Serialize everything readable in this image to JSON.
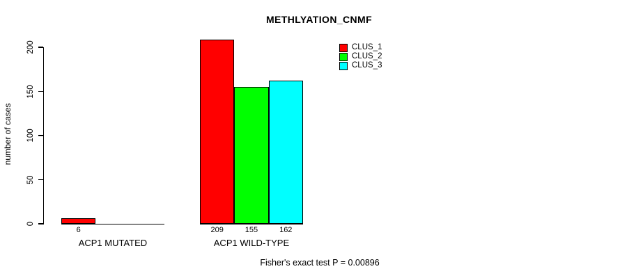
{
  "chart_data": {
    "type": "bar",
    "title": "METHLYATION_CNMF",
    "ylabel": "number of cases",
    "xlabel": "",
    "ylim": [
      0,
      200
    ],
    "yticks": [
      0,
      50,
      100,
      150,
      200
    ],
    "grid": false,
    "legend_position": "top-right",
    "colors": {
      "clus_1": "#ff0000",
      "clus_2": "#00ff00",
      "clus_3": "#00ffff"
    },
    "legend": [
      {
        "name": "CLUS_1",
        "color": "#ff0000"
      },
      {
        "name": "CLUS_2",
        "color": "#00ff00"
      },
      {
        "name": "CLUS_3",
        "color": "#00ffff"
      }
    ],
    "categories": [
      "ACP1 MUTATED",
      "ACP1 WILD-TYPE"
    ],
    "series": [
      {
        "name": "CLUS_1",
        "color": "#ff0000",
        "values": [
          6,
          209
        ]
      },
      {
        "name": "CLUS_2",
        "color": "#00ff00",
        "values": [
          null,
          155
        ]
      },
      {
        "name": "CLUS_3",
        "color": "#00ffff",
        "values": [
          null,
          162
        ]
      }
    ],
    "groups": [
      {
        "label": "ACP1 MUTATED",
        "bars": [
          {
            "series": "CLUS_1",
            "value": 6,
            "label": "6",
            "color": "#ff0000"
          }
        ]
      },
      {
        "label": "ACP1 WILD-TYPE",
        "bars": [
          {
            "series": "CLUS_1",
            "value": 209,
            "label": "209",
            "color": "#ff0000"
          },
          {
            "series": "CLUS_2",
            "value": 155,
            "label": "155",
            "color": "#00ff00"
          },
          {
            "series": "CLUS_3",
            "value": 162,
            "label": "162",
            "color": "#00ffff"
          }
        ]
      }
    ],
    "annotation": "Fisher's exact test P = 0.00896"
  }
}
